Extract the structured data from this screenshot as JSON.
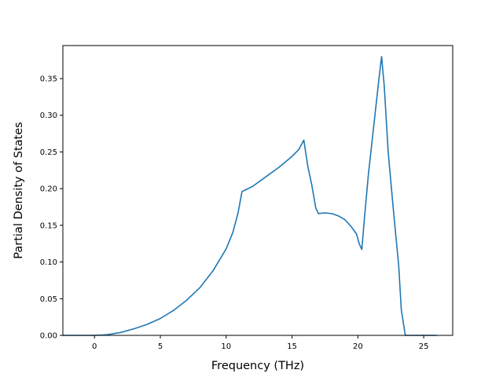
{
  "chart_data": {
    "type": "line",
    "title": "",
    "xlabel": "Frequency (THz)",
    "ylabel": "Partial Density of States",
    "xlim": [
      -2.4,
      27.2
    ],
    "ylim": [
      0,
      0.395
    ],
    "xticks": [
      0,
      5,
      10,
      15,
      20,
      25
    ],
    "yticks": [
      0.0,
      0.05,
      0.1,
      0.15,
      0.2,
      0.25,
      0.3,
      0.35
    ],
    "ytick_labels": [
      "0.00",
      "0.05",
      "0.10",
      "0.15",
      "0.20",
      "0.25",
      "0.30",
      "0.35"
    ],
    "grid": false,
    "legend": "none",
    "series": [
      {
        "color": "#1f77b4",
        "x": [
          -2.4,
          -1,
          0,
          0.5,
          1,
          2,
          3,
          4,
          5,
          6,
          7,
          8,
          9,
          10,
          10.5,
          10.9,
          11.2,
          12,
          13,
          14,
          15,
          15.5,
          15.9,
          16.2,
          16.5,
          16.8,
          17,
          17.5,
          18,
          18.5,
          19,
          19.5,
          19.9,
          20.1,
          20.3,
          20.5,
          20.8,
          21.2,
          21.6,
          21.8,
          22.0,
          22.3,
          22.7,
          23.1,
          23.3,
          23.6,
          24.5,
          26
        ],
        "y": [
          0,
          0,
          0,
          0.0003,
          0.001,
          0.004,
          0.009,
          0.015,
          0.023,
          0.034,
          0.048,
          0.065,
          0.088,
          0.118,
          0.14,
          0.167,
          0.196,
          0.203,
          0.216,
          0.229,
          0.244,
          0.253,
          0.266,
          0.23,
          0.205,
          0.174,
          0.166,
          0.167,
          0.166,
          0.163,
          0.158,
          0.148,
          0.138,
          0.125,
          0.117,
          0.16,
          0.22,
          0.285,
          0.35,
          0.38,
          0.34,
          0.25,
          0.17,
          0.095,
          0.035,
          0,
          0,
          0
        ]
      }
    ]
  }
}
